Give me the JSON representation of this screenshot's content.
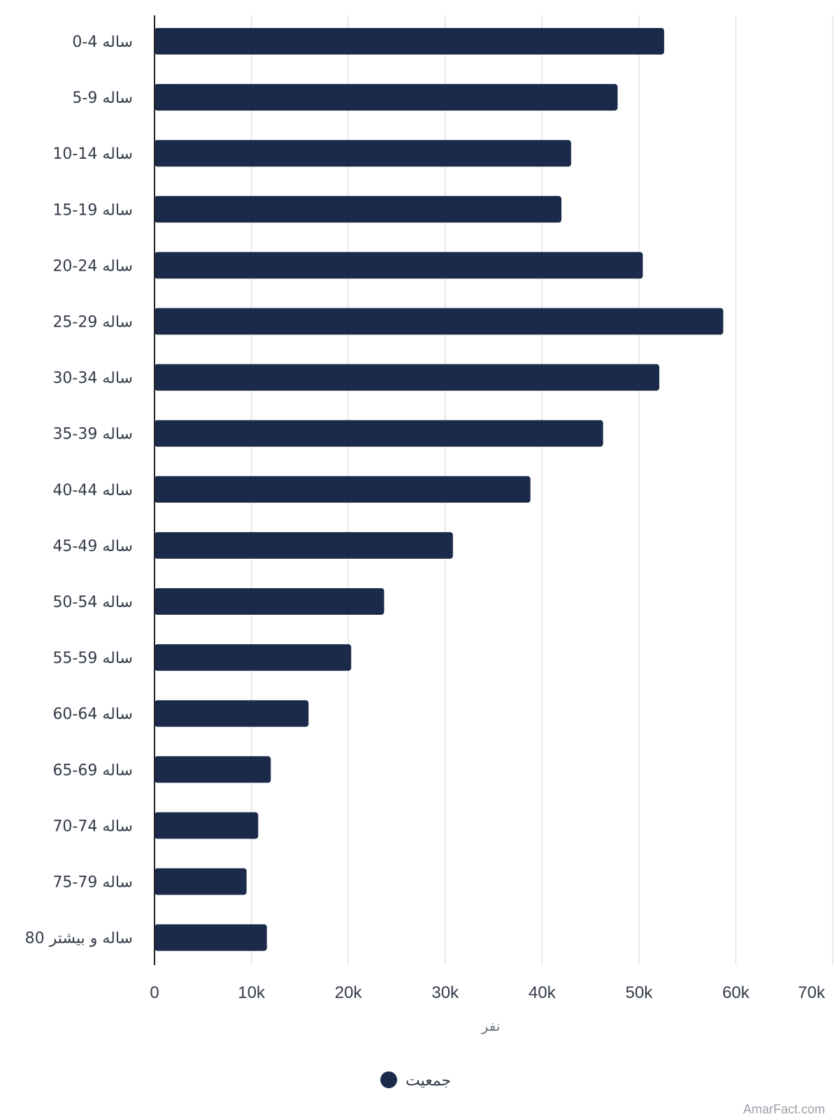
{
  "chart_data": {
    "type": "bar",
    "orientation": "horizontal",
    "categories": [
      "0-4 ساله",
      "5-9 ساله",
      "10-14 ساله",
      "15-19 ساله",
      "20-24 ساله",
      "25-29 ساله",
      "30-34 ساله",
      "35-39 ساله",
      "40-44 ساله",
      "45-49 ساله",
      "50-54 ساله",
      "55-59 ساله",
      "60-64 ساله",
      "65-69 ساله",
      "70-74 ساله",
      "75-79 ساله",
      "80 ساله و بیشتر"
    ],
    "series": [
      {
        "name": "جمعیت",
        "values": [
          52600,
          47800,
          43000,
          42000,
          50400,
          58700,
          52100,
          46300,
          38800,
          30800,
          23700,
          20300,
          15900,
          12000,
          10700,
          9500,
          11600
        ]
      }
    ],
    "xlabel": "نفر",
    "xlim": [
      0,
      70000
    ],
    "xticks": [
      0,
      10000,
      20000,
      30000,
      40000,
      50000,
      60000,
      70000
    ],
    "xtick_labels": [
      "0",
      "10k",
      "20k",
      "30k",
      "40k",
      "50k",
      "60k",
      "70k"
    ],
    "grid": true,
    "legend": "bottom-center",
    "colors": {
      "bar": "#1b2a4a",
      "grid": "#e3e3e3",
      "axis": "#222222",
      "text": "#333a48"
    }
  },
  "watermark": "AmarFact.com"
}
